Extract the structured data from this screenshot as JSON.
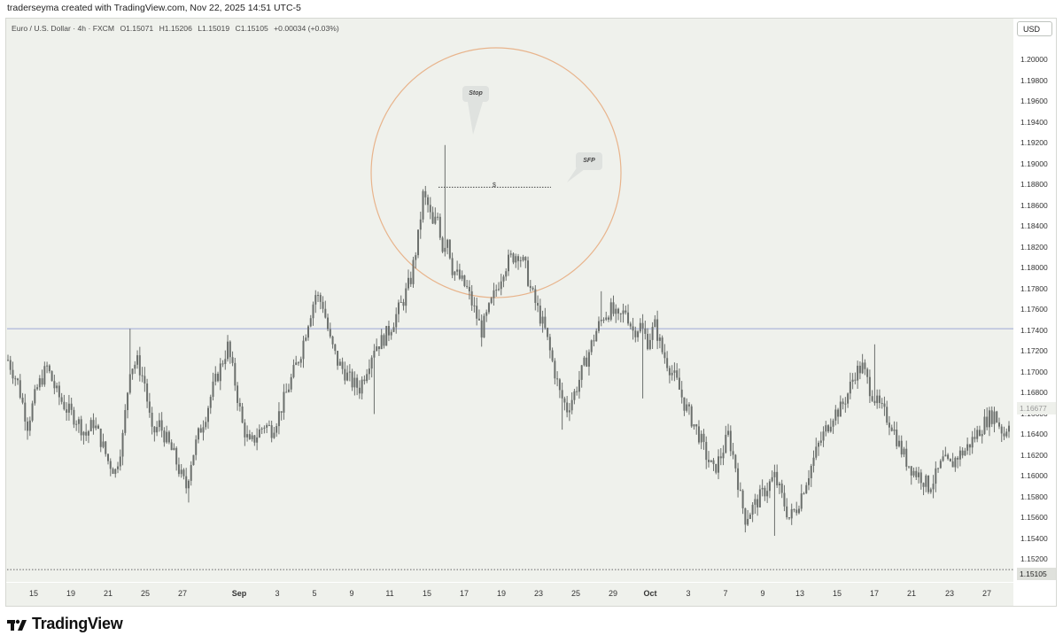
{
  "header": {
    "caption": "traderseyma created with TradingView.com, Nov 22, 2025 14:51 UTC-5"
  },
  "legend": {
    "symbol": "Euro / U.S. Dollar · 4h · FXCM",
    "open": "O1.15071",
    "high": "H1.15206",
    "low": "L1.15019",
    "close": "C1.15105",
    "change": "+0.00034 (+0.03%)"
  },
  "currency_button": "USD",
  "price_badges": {
    "last_price": "1.16677",
    "close_price": "1.15105"
  },
  "annotations": {
    "stop_label": "Stop",
    "sfp_label": "SFP",
    "marker": "$"
  },
  "brand": {
    "name": "TradingView"
  },
  "colors": {
    "candle": "#6b6f6c",
    "background": "#eff1ec",
    "horizontal_line": "#9ea8d6",
    "circle": "#e8b48c",
    "close_line": "#666666"
  },
  "chart_data": {
    "type": "candlestick",
    "symbol": "EUR/USD",
    "timeframe": "4h",
    "ylim": [
      1.151,
      1.2035
    ],
    "y_ticks": [
      "1.20000",
      "1.19800",
      "1.19600",
      "1.19400",
      "1.19200",
      "1.19000",
      "1.18800",
      "1.18600",
      "1.18400",
      "1.18200",
      "1.18000",
      "1.17800",
      "1.17600",
      "1.17400",
      "1.17200",
      "1.17000",
      "1.16800",
      "1.16600",
      "1.16400",
      "1.16200",
      "1.16000",
      "1.15800",
      "1.15600",
      "1.15400",
      "1.15200"
    ],
    "x_ticks": [
      {
        "label": "15",
        "month": false
      },
      {
        "label": "19",
        "month": false
      },
      {
        "label": "21",
        "month": false
      },
      {
        "label": "25",
        "month": false
      },
      {
        "label": "27",
        "month": false
      },
      {
        "label": "Sep",
        "month": true
      },
      {
        "label": "3",
        "month": false
      },
      {
        "label": "5",
        "month": false
      },
      {
        "label": "9",
        "month": false
      },
      {
        "label": "11",
        "month": false
      },
      {
        "label": "15",
        "month": false
      },
      {
        "label": "17",
        "month": false
      },
      {
        "label": "19",
        "month": false
      },
      {
        "label": "23",
        "month": false
      },
      {
        "label": "25",
        "month": false
      },
      {
        "label": "29",
        "month": false
      },
      {
        "label": "Oct",
        "month": true
      },
      {
        "label": "3",
        "month": false
      },
      {
        "label": "7",
        "month": false
      },
      {
        "label": "9",
        "month": false
      },
      {
        "label": "13",
        "month": false
      },
      {
        "label": "15",
        "month": false
      },
      {
        "label": "17",
        "month": false
      },
      {
        "label": "21",
        "month": false
      },
      {
        "label": "23",
        "month": false
      },
      {
        "label": "27",
        "month": false
      }
    ],
    "price_path": [
      [
        0,
        1.1712
      ],
      [
        4,
        1.169
      ],
      [
        8,
        1.165
      ],
      [
        12,
        1.1685
      ],
      [
        16,
        1.1705
      ],
      [
        20,
        1.168
      ],
      [
        24,
        1.1665
      ],
      [
        28,
        1.1655
      ],
      [
        32,
        1.164
      ],
      [
        35,
        1.1652
      ],
      [
        38,
        1.1635
      ],
      [
        41,
        1.1615
      ],
      [
        44,
        1.1605
      ],
      [
        47,
        1.1638
      ],
      [
        50,
        1.1705
      ],
      [
        53,
        1.171
      ],
      [
        56,
        1.169
      ],
      [
        59,
        1.164
      ],
      [
        62,
        1.165
      ],
      [
        65,
        1.1635
      ],
      [
        68,
        1.162
      ],
      [
        71,
        1.16
      ],
      [
        73,
        1.159
      ],
      [
        75,
        1.1615
      ],
      [
        78,
        1.164
      ],
      [
        81,
        1.166
      ],
      [
        84,
        1.1685
      ],
      [
        87,
        1.1705
      ],
      [
        90,
        1.1725
      ],
      [
        93,
        1.169
      ],
      [
        96,
        1.165
      ],
      [
        99,
        1.163
      ],
      [
        102,
        1.164
      ],
      [
        105,
        1.165
      ],
      [
        108,
        1.1645
      ],
      [
        111,
        1.166
      ],
      [
        114,
        1.168
      ],
      [
        117,
        1.17
      ],
      [
        120,
        1.172
      ],
      [
        123,
        1.175
      ],
      [
        126,
        1.1775
      ],
      [
        129,
        1.1765
      ],
      [
        132,
        1.173
      ],
      [
        135,
        1.171
      ],
      [
        138,
        1.17
      ],
      [
        141,
        1.169
      ],
      [
        144,
        1.1685
      ],
      [
        147,
        1.1705
      ],
      [
        150,
        1.1725
      ],
      [
        153,
        1.173
      ],
      [
        156,
        1.174
      ],
      [
        159,
        1.1755
      ],
      [
        162,
        1.177
      ],
      [
        165,
        1.179
      ],
      [
        168,
        1.183
      ],
      [
        170,
        1.187
      ],
      [
        172,
        1.186
      ],
      [
        174,
        1.184
      ],
      [
        176,
        1.185
      ],
      [
        178,
        1.182
      ],
      [
        180,
        1.183
      ],
      [
        182,
        1.18
      ],
      [
        185,
        1.179
      ],
      [
        188,
        1.178
      ],
      [
        191,
        1.176
      ],
      [
        194,
        1.174
      ],
      [
        197,
        1.176
      ],
      [
        200,
        1.178
      ],
      [
        203,
        1.18
      ],
      [
        206,
        1.181
      ],
      [
        209,
        1.1815
      ],
      [
        212,
        1.18
      ],
      [
        214,
        1.178
      ],
      [
        217,
        1.176
      ],
      [
        220,
        1.174
      ],
      [
        223,
        1.171
      ],
      [
        226,
        1.168
      ],
      [
        229,
        1.1665
      ],
      [
        232,
        1.168
      ],
      [
        235,
        1.17
      ],
      [
        238,
        1.172
      ],
      [
        241,
        1.174
      ],
      [
        244,
        1.1755
      ],
      [
        247,
        1.176
      ],
      [
        250,
        1.175
      ],
      [
        253,
        1.176
      ],
      [
        256,
        1.174
      ],
      [
        259,
        1.1745
      ],
      [
        262,
        1.173
      ],
      [
        265,
        1.1745
      ],
      [
        268,
        1.172
      ],
      [
        271,
        1.1705
      ],
      [
        274,
        1.169
      ],
      [
        277,
        1.167
      ],
      [
        280,
        1.1655
      ],
      [
        283,
        1.164
      ],
      [
        286,
        1.162
      ],
      [
        289,
        1.1605
      ],
      [
        292,
        1.162
      ],
      [
        295,
        1.164
      ],
      [
        298,
        1.161
      ],
      [
        300,
        1.158
      ],
      [
        302,
        1.156
      ],
      [
        305,
        1.157
      ],
      [
        308,
        1.158
      ],
      [
        311,
        1.159
      ],
      [
        314,
        1.16
      ],
      [
        317,
        1.158
      ],
      [
        320,
        1.156
      ],
      [
        323,
        1.157
      ],
      [
        326,
        1.159
      ],
      [
        329,
        1.161
      ],
      [
        332,
        1.163
      ],
      [
        335,
        1.1645
      ],
      [
        338,
        1.166
      ],
      [
        341,
        1.1665
      ],
      [
        344,
        1.168
      ],
      [
        347,
        1.17
      ],
      [
        350,
        1.1705
      ],
      [
        353,
        1.1685
      ],
      [
        356,
        1.167
      ],
      [
        359,
        1.166
      ],
      [
        362,
        1.165
      ],
      [
        365,
        1.163
      ],
      [
        368,
        1.1615
      ],
      [
        371,
        1.1605
      ],
      [
        374,
        1.16
      ],
      [
        377,
        1.159
      ],
      [
        380,
        1.16
      ],
      [
        383,
        1.1615
      ],
      [
        386,
        1.161
      ],
      [
        389,
        1.162
      ],
      [
        392,
        1.1625
      ],
      [
        395,
        1.1635
      ],
      [
        398,
        1.1645
      ],
      [
        401,
        1.1655
      ],
      [
        404,
        1.166
      ],
      [
        406,
        1.165
      ],
      [
        408,
        1.164
      ],
      [
        410,
        1.1655
      ]
    ],
    "spikes": [
      {
        "bar": 179,
        "high": 1.19185
      },
      {
        "bar": 50,
        "high": 1.1742
      },
      {
        "bar": 74,
        "low": 1.1575
      },
      {
        "bar": 150,
        "low": 1.166
      },
      {
        "bar": 243,
        "high": 1.1778
      },
      {
        "bar": 260,
        "low": 1.1675
      },
      {
        "bar": 227,
        "low": 1.1645
      },
      {
        "bar": 355,
        "high": 1.1727
      },
      {
        "bar": 314,
        "low": 1.1543
      }
    ],
    "horizontal_level": 1.1742,
    "stop_level": 1.1878,
    "last_price": 1.16677,
    "close_price": 1.15105,
    "bar_count": 411
  }
}
